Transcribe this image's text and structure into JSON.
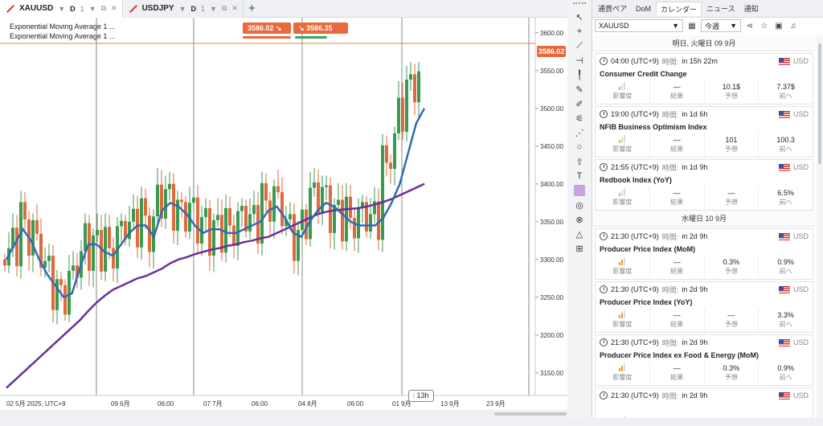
{
  "tabs": [
    {
      "symbol": "XAUUSD",
      "timeframe": "D",
      "sub": "1"
    },
    {
      "symbol": "USDJPY",
      "timeframe": "D",
      "sub": "1"
    }
  ],
  "chart": {
    "legend": [
      "Exponential Moving Average 1 ...",
      "Exponential Moving Average 1 ..."
    ],
    "sell_price": "3586.02",
    "buy_price": "3586.35",
    "current_price": "3586.02",
    "bars_tooltip": "13h",
    "colors": {
      "up": "#3a9a4f",
      "down": "#e06a3c",
      "ema_fast": "#2f6bb5",
      "ema_slow": "#6a2f9a",
      "current": "#d98a4a"
    }
  },
  "chart_data": {
    "type": "candlestick",
    "y_ticks": [
      "3600.00",
      "3550.00",
      "3500.00",
      "3450.00",
      "3400.00",
      "3350.00",
      "3300.00",
      "3250.00",
      "3200.00",
      "3150.00"
    ],
    "ylim": [
      3120,
      3620
    ],
    "x_ticks": [
      "02 5月 2025, UTC+9",
      "09 6月",
      "06:00",
      "07 7月",
      "06:00",
      "04 8月",
      "06:00",
      "01 9月",
      "13 9月",
      "23 9月"
    ],
    "ema_fast": [
      3300,
      3320,
      3340,
      3325,
      3300,
      3280,
      3265,
      3250,
      3255,
      3290,
      3320,
      3320,
      3310,
      3305,
      3320,
      3335,
      3345,
      3345,
      3330,
      3365,
      3375,
      3370,
      3360,
      3345,
      3335,
      3340,
      3340,
      3335,
      3335,
      3340,
      3345,
      3350,
      3365,
      3370,
      3355,
      3335,
      3330,
      3350,
      3365,
      3375,
      3370,
      3360,
      3350,
      3345,
      3345,
      3345,
      3355,
      3375,
      3400,
      3440,
      3480,
      3500
    ],
    "ema_slow": [
      3130,
      3140,
      3150,
      3160,
      3170,
      3180,
      3190,
      3200,
      3210,
      3220,
      3232,
      3243,
      3252,
      3260,
      3265,
      3270,
      3275,
      3278,
      3283,
      3288,
      3295,
      3300,
      3303,
      3307,
      3310,
      3313,
      3315,
      3318,
      3320,
      3323,
      3325,
      3328,
      3330,
      3335,
      3340,
      3345,
      3350,
      3355,
      3360,
      3363,
      3365,
      3366,
      3367,
      3368,
      3370,
      3373,
      3376,
      3380,
      3385,
      3390,
      3395,
      3400
    ]
  },
  "toolbar_icons": [
    "cursor-icon",
    "crosshair-icon",
    "trend-line-icon",
    "horizontal-ray-icon",
    "vertical-line-icon",
    "pencil-icon",
    "brush-icon",
    "fib-icon",
    "parallel-lines-icon",
    "ellipse-icon",
    "arrow-up-icon",
    "text-icon",
    "color-swatch",
    "eraser-icon",
    "magnet-icon",
    "alert-bell-icon",
    "indicators-icon"
  ],
  "panel": {
    "tabs": [
      "通貨ペア",
      "DoM",
      "カレンダー",
      "ニュース",
      "通知"
    ],
    "active_tab": 2,
    "filter_symbol": "XAUUSD",
    "filter_period": "今週",
    "cols": {
      "impact": "影響度",
      "result": "結果",
      "forecast": "予想",
      "prev": "前へ"
    },
    "jikan": "時間:",
    "days": [
      {
        "header": "明日, 火曜日 09 9月",
        "events": [
          {
            "time": "04:00 (UTC+9)",
            "in": "in 15h 22m",
            "currency": "USD",
            "title": "Consumer Credit Change",
            "impact": 1,
            "result": "—",
            "forecast": "10.1$",
            "prev": "7.37$"
          },
          {
            "time": "19:00 (UTC+9)",
            "in": "in 1d 6h",
            "currency": "USD",
            "title": "NFIB Business Optimism Index",
            "impact": 1,
            "result": "—",
            "forecast": "101",
            "prev": "100.3"
          },
          {
            "time": "21:55 (UTC+9)",
            "in": "in 1d 9h",
            "currency": "USD",
            "title": "Redbook Index (YoY)",
            "impact": 1,
            "result": "—",
            "forecast": "—",
            "prev": "6.5%"
          }
        ]
      },
      {
        "header": "水曜日 10 9月",
        "events": [
          {
            "time": "21:30 (UTC+9)",
            "in": "in 2d 9h",
            "currency": "USD",
            "title": "Producer Price Index (MoM)",
            "impact": 2,
            "result": "—",
            "forecast": "0.3%",
            "prev": "0.9%"
          },
          {
            "time": "21:30 (UTC+9)",
            "in": "in 2d 9h",
            "currency": "USD",
            "title": "Producer Price Index (YoY)",
            "impact": 2,
            "result": "—",
            "forecast": "—",
            "prev": "3.3%"
          },
          {
            "time": "21:30 (UTC+9)",
            "in": "in 2d 9h",
            "currency": "USD",
            "title": "Producer Price Index ex Food & Energy (MoM)",
            "impact": 2,
            "result": "—",
            "forecast": "0.3%",
            "prev": "0.9%"
          },
          {
            "time": "21:30 (UTC+9)",
            "in": "in 2d 9h",
            "currency": "USD",
            "title": "",
            "impact": 2,
            "result": "",
            "forecast": "",
            "prev": ""
          }
        ]
      }
    ]
  }
}
